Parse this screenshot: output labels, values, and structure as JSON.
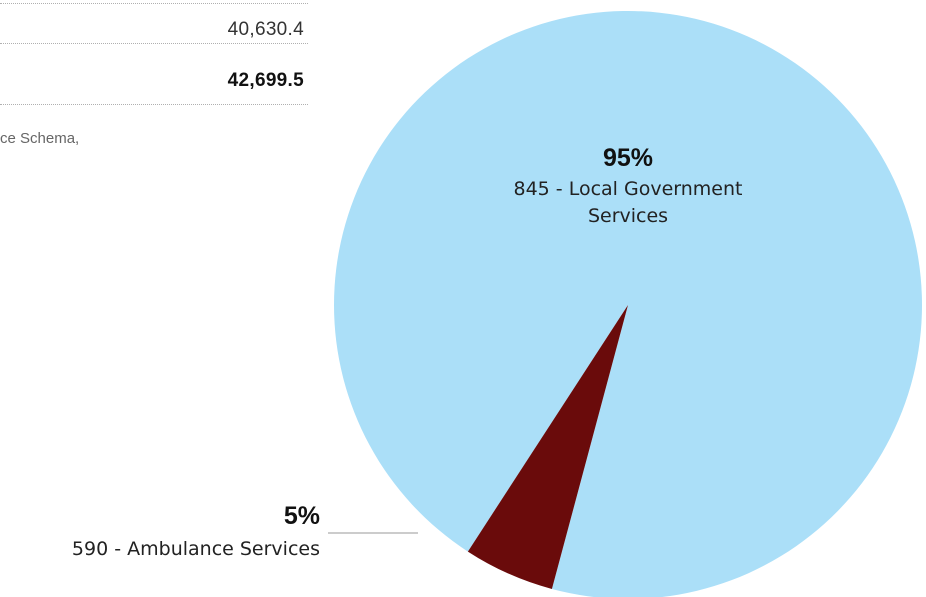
{
  "table": {
    "rows": [
      {
        "value": "40,630.4"
      },
      {
        "value": "42,699.5"
      }
    ]
  },
  "source_fragment": "ce Schema,",
  "chart_data": {
    "type": "pie",
    "slices": [
      {
        "name_lines": [
          "845 - Local Government",
          "Services"
        ],
        "label": "95%",
        "value": 95,
        "color": "#abdff8"
      },
      {
        "name_lines": [
          "590 - Ambulance Services"
        ],
        "label": "5%",
        "value": 5,
        "color": "#6a0b0b"
      }
    ],
    "legend": "none"
  }
}
